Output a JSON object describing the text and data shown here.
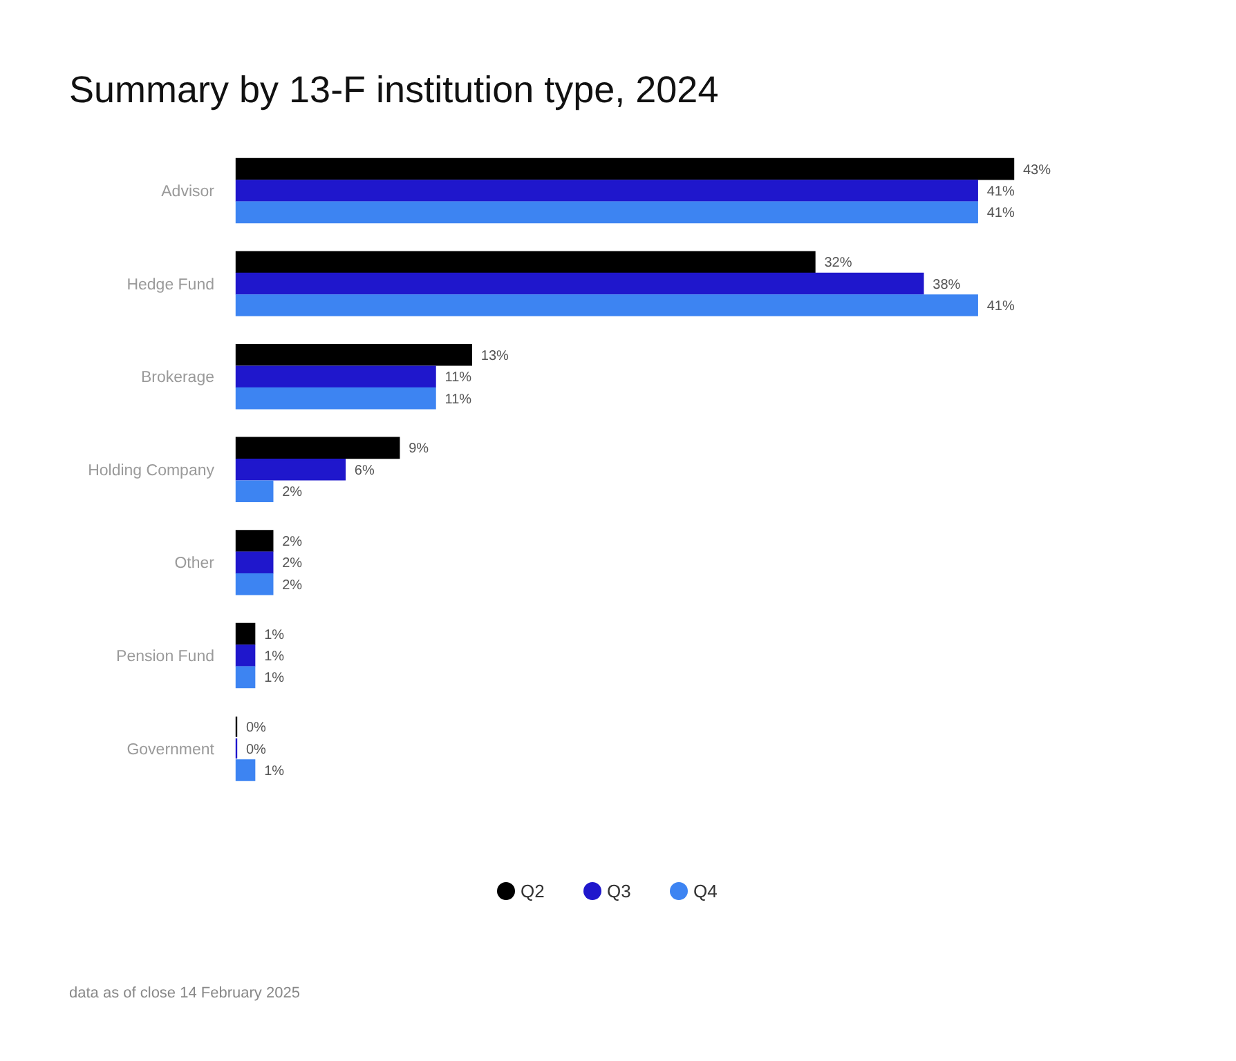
{
  "chart_data": {
    "type": "bar",
    "orientation": "horizontal",
    "title": "Summary by 13-F institution type, 2024",
    "categories": [
      "Advisor",
      "Hedge Fund",
      "Brokerage",
      "Holding Company",
      "Other",
      "Pension Fund",
      "Government"
    ],
    "series": [
      {
        "name": "Q2",
        "color": "#000000",
        "values": [
          43,
          32,
          13,
          9,
          2,
          1,
          0
        ],
        "value_labels": [
          "43%",
          "32%",
          "13%",
          "9%",
          "2%",
          "1%",
          "0%"
        ]
      },
      {
        "name": "Q3",
        "color": "#1f17cc",
        "values": [
          41,
          38,
          11,
          6,
          2,
          1,
          0
        ],
        "value_labels": [
          "41%",
          "38%",
          "11%",
          "6%",
          "2%",
          "1%",
          "0%"
        ]
      },
      {
        "name": "Q4",
        "color": "#3d84f2",
        "values": [
          41,
          41,
          11,
          2,
          2,
          1,
          1
        ],
        "value_labels": [
          "41%",
          "41%",
          "11%",
          "2%",
          "2%",
          "1%",
          "1%"
        ]
      }
    ],
    "legend": "bottom",
    "annotations": [
      "data as of close 14 February 2025"
    ]
  }
}
